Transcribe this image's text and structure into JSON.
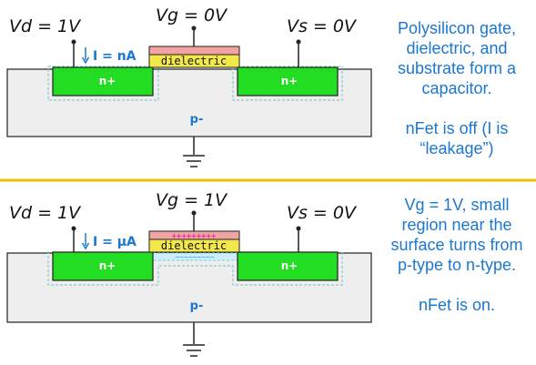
{
  "colors": {
    "n_region": "#22dd22",
    "p_substrate": "#eeeeee",
    "depletion_border": "#88cccc",
    "gate": "#f4a3a3",
    "dielectric": "#f2e84a",
    "divider": "#f0c000",
    "annotation": "#1a78d0",
    "positive_charge": "#d01aa0",
    "negative_charge": "#1a9ad0"
  },
  "top_panel": {
    "vd_label": "Vd = 1V",
    "vg_label": "Vg = 0V",
    "vs_label": "Vs = 0V",
    "current_label": "I = nA",
    "dielectric_label": "dielectric",
    "drain_label": "n+",
    "source_label": "n+",
    "substrate_label": "p-",
    "caption_1": "Polysilicon gate, dielectric, and substrate form a capacitor.",
    "caption_2": "nFet is off (I is “leakage”)"
  },
  "bottom_panel": {
    "vd_label": "Vd = 1V",
    "vg_label": "Vg = 1V",
    "vs_label": "Vs = 0V",
    "current_label": "I = μA",
    "dielectric_label": "dielectric",
    "positive_charges": "+++++++++",
    "negative_charges": "~~~~~~~~~",
    "drain_label": "n+",
    "source_label": "n+",
    "substrate_label": "p-",
    "caption_1": "Vg = 1V, small region near the surface turns from p-type to n-type.",
    "caption_2": "nFet is on."
  }
}
